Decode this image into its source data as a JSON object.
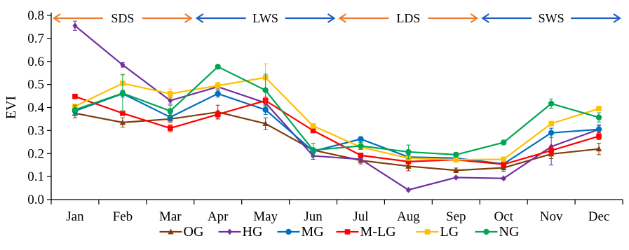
{
  "chart_data": {
    "type": "line",
    "ylabel": "EVI",
    "xlabel": "",
    "ylim": [
      0.0,
      0.8
    ],
    "yticks": [
      "0.0",
      "0.1",
      "0.2",
      "0.3",
      "0.4",
      "0.5",
      "0.6",
      "0.7",
      "0.8"
    ],
    "categories": [
      "Jan",
      "Feb",
      "Mar",
      "Apr",
      "May",
      "Jun",
      "Jul",
      "Aug",
      "Sep",
      "Oct",
      "Nov",
      "Dec"
    ],
    "grid": false,
    "legend_position": "bottom",
    "seasons": [
      {
        "label": "SDS",
        "from": -0.5,
        "to": 2.5,
        "color": "#ED7D31"
      },
      {
        "label": "LWS",
        "from": 2.5,
        "to": 5.5,
        "color": "#1F5FBF"
      },
      {
        "label": "LDS",
        "from": 5.5,
        "to": 8.5,
        "color": "#ED7D31"
      },
      {
        "label": "SWS",
        "from": 8.5,
        "to": 11.5,
        "color": "#1F5FBF"
      }
    ],
    "series": [
      {
        "name": "OG",
        "color": "#833C0B",
        "marker": "triangle",
        "values": [
          0.375,
          0.335,
          0.35,
          0.38,
          0.33,
          0.215,
          0.17,
          0.145,
          0.127,
          0.138,
          0.198,
          0.22
        ],
        "errors": [
          0.02,
          0.02,
          0.015,
          0.03,
          0.025,
          0.01,
          0.015,
          0.02,
          0.01,
          0.015,
          0.02,
          0.025
        ]
      },
      {
        "name": "HG",
        "color": "#7030A0",
        "marker": "diamond",
        "values": [
          0.755,
          0.585,
          0.43,
          0.49,
          0.42,
          0.19,
          0.175,
          0.042,
          0.096,
          0.092,
          0.23,
          0.305
        ],
        "errors": [
          0.02,
          0.01,
          0.015,
          0.01,
          0.02,
          0.015,
          0.01,
          0.005,
          0.005,
          0.005,
          0.08,
          0.02
        ]
      },
      {
        "name": "MG",
        "color": "#0070C0",
        "marker": "circle",
        "values": [
          0.385,
          0.46,
          0.358,
          0.46,
          0.39,
          0.21,
          0.263,
          0.185,
          0.18,
          0.155,
          0.29,
          0.305
        ],
        "errors": [
          0.015,
          0.015,
          0.015,
          0.015,
          0.02,
          0.01,
          0.01,
          0.01,
          0.01,
          0.01,
          0.02,
          0.015
        ]
      },
      {
        "name": "M-LG",
        "color": "#FF0000",
        "marker": "square",
        "values": [
          0.448,
          0.375,
          0.31,
          0.37,
          0.43,
          0.3,
          0.192,
          0.165,
          0.173,
          0.153,
          0.213,
          0.275
        ],
        "errors": [
          0.01,
          0.01,
          0.015,
          0.015,
          0.015,
          0.01,
          0.01,
          0.01,
          0.01,
          0.01,
          0.015,
          0.015
        ]
      },
      {
        "name": "LG",
        "color": "#FFC000",
        "marker": "square",
        "values": [
          0.405,
          0.505,
          0.46,
          0.495,
          0.53,
          0.32,
          0.228,
          0.18,
          0.173,
          0.175,
          0.33,
          0.395
        ],
        "errors": [
          0.01,
          0.04,
          0.02,
          0.015,
          0.06,
          0.01,
          0.01,
          0.01,
          0.01,
          0.01,
          0.01,
          0.01
        ]
      },
      {
        "name": "NG",
        "color": "#00A651",
        "marker": "circle",
        "values": [
          0.39,
          0.462,
          0.385,
          0.577,
          0.475,
          0.215,
          0.233,
          0.207,
          0.195,
          0.248,
          0.417,
          0.357
        ],
        "errors": [
          0.02,
          0.08,
          0.025,
          0.01,
          0.07,
          0.03,
          0.015,
          0.03,
          0.01,
          0.01,
          0.02,
          0.02
        ]
      }
    ]
  }
}
